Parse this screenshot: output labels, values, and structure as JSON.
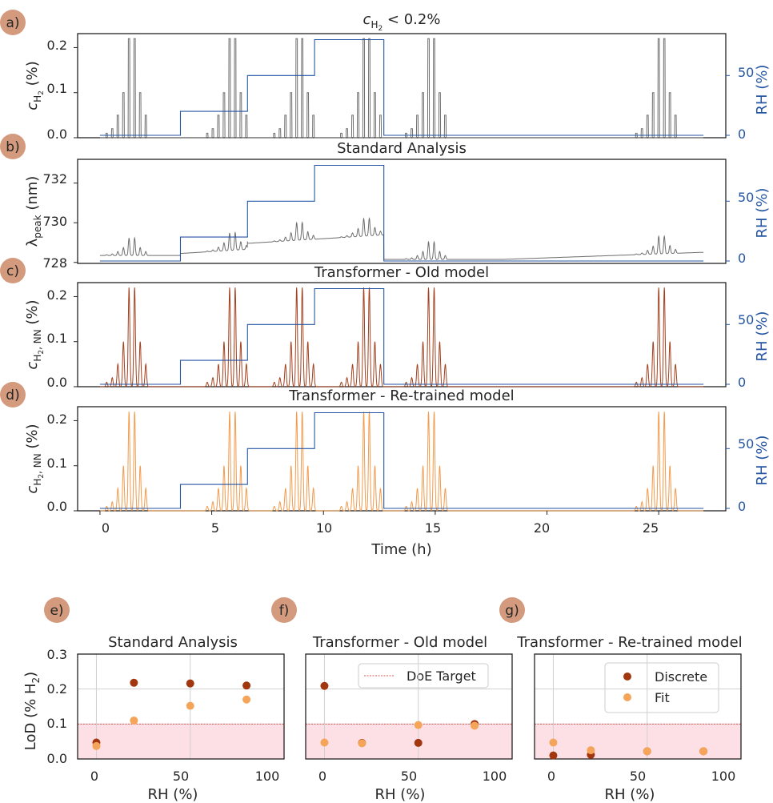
{
  "colors": {
    "rh": "#2456a4",
    "raw": "#6e6e6e",
    "old": "#a3401d",
    "retrained": "#f39a4c",
    "discrete": "#a1360f",
    "fit": "#f4a559",
    "doe": "#d9534f",
    "shade": "#fde0e6",
    "badge": "#d49a7d"
  },
  "time_series": {
    "xlabel": "Time (h)",
    "xlim": [
      -1,
      28
    ],
    "xticks": [
      "0",
      "5",
      "10",
      "15",
      "20",
      "25"
    ],
    "rh": {
      "label": "RH (%)",
      "ylim": [
        -2,
        85
      ],
      "ticks": [
        "0",
        "50"
      ],
      "steps": [
        {
          "t0": 0,
          "t1": 3.6,
          "rh": 0
        },
        {
          "t0": 3.6,
          "t1": 6.6,
          "rh": 20
        },
        {
          "t0": 6.6,
          "t1": 9.6,
          "rh": 50
        },
        {
          "t0": 9.6,
          "t1": 12.7,
          "rh": 80
        },
        {
          "t0": 12.7,
          "t1": 27,
          "rh": 0
        }
      ]
    },
    "pulses": {
      "centers": [
        1.3,
        1.55,
        1.8,
        2.05,
        2.3,
        2.55,
        2.8,
        3.05
      ],
      "amplitudes": [
        0.01,
        0.02,
        0.05,
        0.1,
        0.22,
        0.22,
        0.1,
        0.05
      ],
      "group_starts": [
        0,
        3.6,
        6.6,
        9.6,
        12.7,
        23.7
      ],
      "group_offsets": [
        0,
        0.9,
        0.9,
        0.9,
        0.7,
        0
      ]
    }
  },
  "panels": [
    {
      "badge": "a)",
      "title_main": "c",
      "title_sub": "H",
      "title_subsub": "2",
      "title_rest": " < 0.2%",
      "ylabel_main": "c",
      "ylabel_sub": "H",
      "ylabel_subsub": "2",
      "ylabel_rest": " (%)",
      "yticks": [
        "0.0",
        "0.1",
        "0.2"
      ]
    },
    {
      "badge": "b)",
      "title": "Standard Analysis",
      "ylabel_main": "λ",
      "ylabel_sub": "peak",
      "ylabel_rest": " (nm)",
      "yticks": [
        "728",
        "730",
        "732"
      ]
    },
    {
      "badge": "c)",
      "title": "Transformer - Old model",
      "ylabel_main": "c",
      "ylabel_sub": "H",
      "ylabel_subsub": "2",
      "ylabel_sub2": ", NN",
      "ylabel_rest": " (%)",
      "yticks": [
        "0.0",
        "0.1",
        "0.2"
      ]
    },
    {
      "badge": "d)",
      "title": "Transformer - Re-trained model",
      "ylabel_main": "c",
      "ylabel_sub": "H",
      "ylabel_subsub": "2",
      "ylabel_sub2": ", NN",
      "ylabel_rest": " (%)",
      "yticks": [
        "0.0",
        "0.1",
        "0.2"
      ]
    }
  ],
  "lod": {
    "xlabel": "RH (%)",
    "ylabel_main": "LoD (% H",
    "ylabel_sub": "2",
    "ylabel_rest": ")",
    "xticks": [
      "0",
      "50",
      "100"
    ],
    "yticks": [
      "0.0",
      "0.1",
      "0.2",
      "0.3"
    ],
    "legend_doe": "DoE Target",
    "legend_discrete": "Discrete",
    "legend_fit": "Fit"
  },
  "chart_data": [
    {
      "type": "line",
      "title": "c_H2 < 0.2%",
      "xlabel": "Time (h)",
      "ylabel": "c_H2 (%)",
      "y2label": "RH (%)",
      "xlim": [
        0,
        27
      ],
      "ylim": [
        0,
        0.22
      ],
      "y2lim": [
        0,
        80
      ],
      "series": [
        {
          "name": "c_H2 (%)",
          "x": [
            1.3,
            1.55,
            1.8,
            2.05,
            2.3,
            2.55,
            2.8,
            3.05
          ],
          "y": [
            0.01,
            0.02,
            0.05,
            0.1,
            0.22,
            0.22,
            0.1,
            0.05
          ]
        },
        {
          "name": "RH (%)",
          "x": [
            0,
            3.6,
            6.6,
            9.6,
            12.7,
            27
          ],
          "y": [
            0,
            20,
            50,
            80,
            0,
            0
          ]
        }
      ]
    },
    {
      "type": "line",
      "title": "Standard Analysis",
      "xlabel": "Time (h)",
      "ylabel": "λ_peak (nm)",
      "y2label": "RH (%)",
      "xlim": [
        0,
        27
      ],
      "ylim": [
        728,
        733
      ],
      "y2lim": [
        0,
        80
      ],
      "series": [
        {
          "name": "λ_peak (nm)",
          "x": [
            0,
            3.6,
            6.6,
            9.6,
            11.5,
            12.7,
            15,
            20,
            25,
            27
          ],
          "y": [
            728.4,
            728.5,
            728.8,
            729.1,
            729.5,
            728.5,
            728.2,
            728.2,
            728.5,
            728.7
          ]
        }
      ]
    },
    {
      "type": "line",
      "title": "Transformer - Old model",
      "xlabel": "Time (h)",
      "ylabel": "c_H2,NN (%)",
      "y2label": "RH (%)",
      "ylim": [
        0,
        0.22
      ],
      "y2lim": [
        0,
        80
      ]
    },
    {
      "type": "line",
      "title": "Transformer - Re-trained model",
      "xlabel": "Time (h)",
      "ylabel": "c_H2,NN (%)",
      "y2label": "RH (%)",
      "ylim": [
        0,
        0.22
      ],
      "y2lim": [
        0,
        80
      ]
    },
    {
      "type": "scatter",
      "title": "Standard Analysis",
      "xlabel": "RH (%)",
      "ylabel": "LoD (% H2)",
      "xlim": [
        -10,
        100
      ],
      "ylim": [
        0,
        0.3
      ],
      "series": [
        {
          "name": "Discrete",
          "x": [
            0,
            20,
            50,
            80
          ],
          "y": [
            0.047,
            0.218,
            0.216,
            0.21
          ]
        },
        {
          "name": "Fit",
          "x": [
            0,
            20,
            50,
            80
          ],
          "y": [
            0.037,
            0.11,
            0.152,
            0.17
          ]
        }
      ],
      "hline": 0.1
    },
    {
      "type": "scatter",
      "title": "Transformer - Old model",
      "xlabel": "RH (%)",
      "ylim": [
        0,
        0.3
      ],
      "series": [
        {
          "name": "Discrete",
          "x": [
            0,
            20,
            50,
            80
          ],
          "y": [
            0.209,
            0.046,
            0.046,
            0.1
          ]
        },
        {
          "name": "Fit",
          "x": [
            0,
            20,
            50,
            80
          ],
          "y": [
            0.047,
            0.045,
            0.097,
            0.095
          ]
        }
      ],
      "hline": 0.1
    },
    {
      "type": "scatter",
      "title": "Transformer - Re-trained model",
      "xlabel": "RH (%)",
      "ylim": [
        0,
        0.3
      ],
      "series": [
        {
          "name": "Discrete",
          "x": [
            0,
            20,
            50,
            80
          ],
          "y": [
            0.01,
            0.012,
            0.022,
            0.022
          ]
        },
        {
          "name": "Fit",
          "x": [
            0,
            20,
            50,
            80
          ],
          "y": [
            0.047,
            0.025,
            0.022,
            0.022
          ]
        }
      ],
      "hline": 0.1
    }
  ]
}
